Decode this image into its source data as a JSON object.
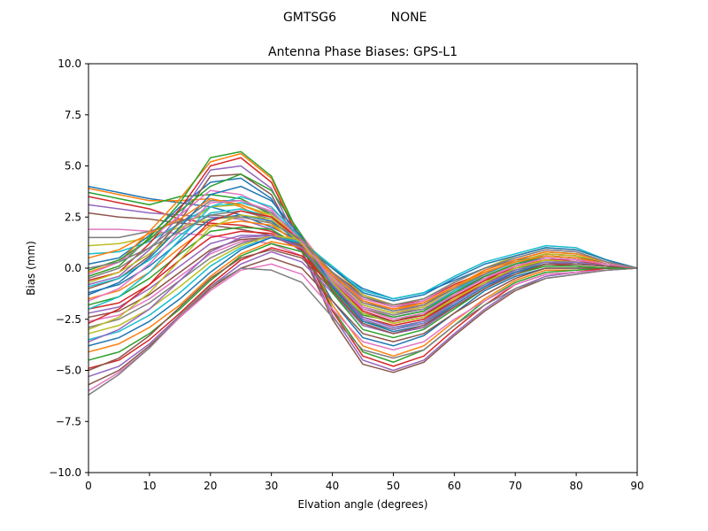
{
  "suptitle_left": "GMTSG6",
  "suptitle_right": "NONE",
  "chart_data": {
    "type": "line",
    "title": "Antenna Phase Biases: GPS-L1",
    "xlabel": "Elvation angle (degrees)",
    "ylabel": "Bias (mm)",
    "xlim": [
      0,
      90
    ],
    "ylim": [
      -10,
      10
    ],
    "xticks": [
      0,
      10,
      20,
      30,
      40,
      50,
      60,
      70,
      80,
      90
    ],
    "yticks": [
      -10.0,
      -7.5,
      -5.0,
      -2.5,
      0.0,
      2.5,
      5.0,
      7.5,
      10.0
    ],
    "ytick_labels": [
      "−10.0",
      "−7.5",
      "−5.0",
      "−2.5",
      "0.0",
      "2.5",
      "5.0",
      "7.5",
      "10.0"
    ],
    "x": [
      0,
      5,
      10,
      15,
      20,
      25,
      30,
      35,
      40,
      45,
      50,
      55,
      60,
      65,
      70,
      75,
      80,
      85,
      90
    ],
    "grid": false,
    "legend": "none",
    "palette": [
      "#1f77b4",
      "#ff7f0e",
      "#2ca02c",
      "#d62728",
      "#9467bd",
      "#8c564b",
      "#e377c2",
      "#7f7f7f",
      "#bcbd22",
      "#17becf"
    ],
    "series": [
      {
        "values": [
          4.0,
          3.7,
          3.4,
          3.2,
          3.0,
          2.6,
          2.0,
          1.3,
          0.0,
          -1.0,
          -1.5,
          -1.2,
          -0.6,
          0.0,
          0.4,
          0.6,
          0.5,
          0.2,
          0.0
        ]
      },
      {
        "values": [
          3.9,
          3.6,
          3.3,
          3.3,
          3.4,
          3.0,
          2.2,
          1.0,
          -0.5,
          -1.6,
          -2.0,
          -1.8,
          -1.0,
          -0.4,
          0.1,
          0.4,
          0.3,
          0.1,
          0.0
        ]
      },
      {
        "values": [
          3.7,
          3.4,
          3.1,
          3.5,
          3.6,
          3.4,
          2.6,
          1.2,
          -0.9,
          -2.3,
          -2.6,
          -2.2,
          -1.4,
          -0.6,
          -0.1,
          0.2,
          0.2,
          0.1,
          0.0
        ]
      },
      {
        "values": [
          3.5,
          3.2,
          2.9,
          2.4,
          2.2,
          2.1,
          1.8,
          1.0,
          -0.2,
          -1.3,
          -1.8,
          -1.6,
          -0.8,
          -0.2,
          0.3,
          0.7,
          0.6,
          0.2,
          0.0
        ]
      },
      {
        "values": [
          3.1,
          2.9,
          2.7,
          2.6,
          2.5,
          2.4,
          1.9,
          0.8,
          -0.6,
          -1.8,
          -2.2,
          -2.0,
          -1.1,
          -0.4,
          0.2,
          0.5,
          0.4,
          0.1,
          0.0
        ]
      },
      {
        "values": [
          2.7,
          2.5,
          2.4,
          2.2,
          2.1,
          1.9,
          1.6,
          0.9,
          -0.4,
          -1.4,
          -1.9,
          -1.7,
          -0.9,
          -0.3,
          0.3,
          0.7,
          0.6,
          0.2,
          0.0
        ]
      },
      {
        "values": [
          1.9,
          1.9,
          1.8,
          1.7,
          1.6,
          1.4,
          1.2,
          0.6,
          -0.5,
          -1.6,
          -2.1,
          -1.9,
          -1.0,
          -0.4,
          0.1,
          0.5,
          0.4,
          0.1,
          0.0
        ]
      },
      {
        "values": [
          1.5,
          1.5,
          1.8,
          2.3,
          2.6,
          2.8,
          2.4,
          1.3,
          -0.6,
          -1.9,
          -2.3,
          -2.0,
          -1.2,
          -0.5,
          0.0,
          0.3,
          0.2,
          0.1,
          0.0
        ]
      },
      {
        "values": [
          1.1,
          1.2,
          1.5,
          2.0,
          2.4,
          2.5,
          2.2,
          1.0,
          -0.8,
          -2.2,
          -2.6,
          -2.3,
          -1.5,
          -0.7,
          -0.2,
          0.1,
          0.1,
          0.0,
          0.0
        ]
      },
      {
        "values": [
          0.7,
          0.8,
          1.3,
          2.2,
          3.0,
          3.2,
          2.8,
          1.4,
          -0.9,
          -2.6,
          -3.0,
          -2.6,
          -1.6,
          -0.8,
          -0.2,
          0.2,
          0.2,
          0.1,
          0.0
        ]
      },
      {
        "values": [
          0.2,
          0.5,
          1.6,
          3.0,
          4.2,
          4.4,
          3.4,
          1.0,
          -1.6,
          -3.4,
          -3.8,
          -3.3,
          -2.2,
          -1.1,
          -0.4,
          0.0,
          0.0,
          0.0,
          0.0
        ]
      },
      {
        "values": [
          -0.2,
          0.3,
          1.8,
          3.4,
          5.2,
          5.6,
          4.4,
          1.2,
          -1.8,
          -3.8,
          -4.3,
          -3.8,
          -2.6,
          -1.5,
          -0.6,
          -0.1,
          -0.1,
          0.0,
          0.0
        ]
      },
      {
        "values": [
          -0.4,
          0.1,
          1.5,
          3.2,
          5.4,
          5.7,
          4.5,
          1.3,
          -2.0,
          -4.1,
          -4.6,
          -4.0,
          -2.8,
          -1.6,
          -0.7,
          -0.2,
          -0.1,
          0.0,
          0.0
        ]
      },
      {
        "values": [
          -0.6,
          -0.2,
          1.2,
          2.9,
          5.0,
          5.4,
          4.2,
          1.1,
          -2.1,
          -4.3,
          -4.8,
          -4.3,
          -3.0,
          -1.8,
          -0.8,
          -0.3,
          -0.2,
          0.0,
          0.0
        ]
      },
      {
        "values": [
          -0.8,
          -0.4,
          0.9,
          2.6,
          4.8,
          5.0,
          3.9,
          0.9,
          -2.3,
          -4.5,
          -5.0,
          -4.5,
          -3.2,
          -2.0,
          -1.0,
          -0.4,
          -0.2,
          -0.1,
          0.0
        ]
      },
      {
        "values": [
          -1.0,
          -0.5,
          0.6,
          2.3,
          4.5,
          4.6,
          3.6,
          0.8,
          -2.5,
          -4.7,
          -5.1,
          -4.6,
          -3.3,
          -2.1,
          -1.1,
          -0.5,
          -0.3,
          -0.1,
          0.0
        ]
      },
      {
        "values": [
          -0.3,
          0.3,
          1.4,
          2.6,
          3.8,
          3.6,
          2.9,
          1.6,
          -0.3,
          -1.5,
          -1.9,
          -1.6,
          -0.7,
          0.0,
          0.5,
          0.9,
          0.8,
          0.3,
          0.0
        ]
      },
      {
        "values": [
          -0.5,
          0.0,
          1.0,
          2.2,
          3.3,
          3.3,
          2.7,
          1.5,
          -0.4,
          -1.7,
          -2.1,
          -1.8,
          -0.9,
          -0.1,
          0.4,
          0.8,
          0.7,
          0.3,
          0.0
        ]
      },
      {
        "values": [
          -0.7,
          -0.2,
          0.7,
          1.9,
          3.0,
          3.1,
          2.6,
          1.4,
          -0.5,
          -1.8,
          -2.2,
          -1.9,
          -1.0,
          -0.2,
          0.3,
          0.7,
          0.6,
          0.3,
          0.0
        ]
      },
      {
        "values": [
          -0.9,
          -0.5,
          0.4,
          1.6,
          2.7,
          2.9,
          2.5,
          1.3,
          -0.6,
          -2.0,
          -2.4,
          -2.1,
          -1.1,
          -0.3,
          0.3,
          0.6,
          0.5,
          0.2,
          0.0
        ]
      },
      {
        "values": [
          -1.2,
          -0.8,
          0.1,
          1.3,
          2.4,
          2.6,
          2.3,
          1.2,
          -0.7,
          -2.2,
          -2.6,
          -2.3,
          -1.3,
          -0.4,
          0.2,
          0.5,
          0.4,
          0.2,
          0.0
        ]
      },
      {
        "values": [
          -1.5,
          -1.1,
          -0.2,
          1.0,
          2.1,
          2.3,
          2.1,
          1.1,
          -0.9,
          -2.4,
          -2.8,
          -2.5,
          -1.5,
          -0.6,
          0.1,
          0.4,
          0.3,
          0.1,
          0.0
        ]
      },
      {
        "values": [
          -1.8,
          -1.4,
          -0.5,
          0.7,
          1.8,
          2.0,
          1.9,
          1.0,
          -1.0,
          -2.6,
          -3.0,
          -2.7,
          -1.7,
          -0.8,
          0.0,
          0.3,
          0.2,
          0.1,
          0.0
        ]
      },
      {
        "values": [
          -2.0,
          -1.7,
          -0.8,
          0.4,
          1.5,
          1.8,
          1.7,
          0.9,
          -1.1,
          -2.8,
          -3.2,
          -2.9,
          -1.9,
          -1.0,
          -0.2,
          0.2,
          0.1,
          0.0,
          0.0
        ]
      },
      {
        "values": [
          -2.2,
          -1.9,
          -1.0,
          0.1,
          1.2,
          1.6,
          1.6,
          1.0,
          -0.8,
          -2.5,
          -3.0,
          -2.7,
          -1.8,
          -0.9,
          -0.1,
          0.3,
          0.2,
          0.1,
          0.0
        ]
      },
      {
        "values": [
          -2.4,
          -2.1,
          -1.3,
          -0.2,
          0.9,
          1.4,
          1.5,
          1.1,
          -0.6,
          -2.2,
          -2.7,
          -2.4,
          -1.6,
          -0.8,
          0.0,
          0.4,
          0.3,
          0.1,
          0.0
        ]
      },
      {
        "values": [
          -2.6,
          -2.3,
          -1.5,
          -0.4,
          0.7,
          1.3,
          1.5,
          1.2,
          -0.4,
          -1.9,
          -2.4,
          -2.1,
          -1.3,
          -0.5,
          0.2,
          0.6,
          0.5,
          0.2,
          0.0
        ]
      },
      {
        "values": [
          -2.9,
          -2.5,
          -1.7,
          -0.6,
          0.5,
          1.2,
          1.6,
          1.3,
          -0.2,
          -1.6,
          -2.1,
          -1.8,
          -1.0,
          -0.3,
          0.4,
          0.8,
          0.7,
          0.3,
          0.0
        ]
      },
      {
        "values": [
          -3.2,
          -2.8,
          -2.0,
          -0.9,
          0.3,
          1.1,
          1.6,
          1.4,
          0.0,
          -1.3,
          -1.8,
          -1.5,
          -0.7,
          0.0,
          0.6,
          1.0,
          0.9,
          0.4,
          0.0
        ]
      },
      {
        "values": [
          -3.5,
          -3.1,
          -2.3,
          -1.2,
          0.1,
          1.0,
          1.5,
          1.3,
          0.1,
          -1.1,
          -1.5,
          -1.2,
          -0.4,
          0.3,
          0.7,
          1.1,
          1.0,
          0.4,
          0.0
        ]
      },
      {
        "values": [
          -3.8,
          -3.4,
          -2.6,
          -1.5,
          -0.2,
          0.9,
          1.5,
          1.2,
          0.0,
          -1.2,
          -1.6,
          -1.3,
          -0.5,
          0.2,
          0.6,
          1.0,
          0.9,
          0.4,
          0.0
        ]
      },
      {
        "values": [
          -4.1,
          -3.7,
          -2.9,
          -1.8,
          -0.4,
          0.7,
          1.3,
          1.0,
          -0.3,
          -1.6,
          -2.0,
          -1.7,
          -0.9,
          -0.1,
          0.4,
          0.8,
          0.7,
          0.3,
          0.0
        ]
      },
      {
        "values": [
          -4.5,
          -4.1,
          -3.2,
          -2.0,
          -0.6,
          0.6,
          1.2,
          0.8,
          -0.6,
          -2.0,
          -2.4,
          -2.1,
          -1.2,
          -0.4,
          0.2,
          0.6,
          0.5,
          0.2,
          0.0
        ]
      },
      {
        "values": [
          -4.9,
          -4.5,
          -3.5,
          -2.2,
          -0.8,
          0.4,
          1.0,
          0.6,
          -0.9,
          -2.4,
          -2.8,
          -2.5,
          -1.6,
          -0.7,
          0.0,
          0.4,
          0.4,
          0.1,
          0.0
        ]
      },
      {
        "values": [
          -5.3,
          -4.8,
          -3.7,
          -2.3,
          -0.9,
          0.2,
          0.8,
          0.3,
          -1.2,
          -2.8,
          -3.2,
          -2.9,
          -1.9,
          -1.0,
          -0.2,
          0.2,
          0.2,
          0.1,
          0.0
        ]
      },
      {
        "values": [
          -5.7,
          -5.0,
          -3.8,
          -2.4,
          -1.0,
          0.0,
          0.5,
          0.0,
          -1.6,
          -3.2,
          -3.6,
          -3.2,
          -2.2,
          -1.3,
          -0.5,
          0.0,
          0.0,
          0.0,
          0.0
        ]
      },
      {
        "values": [
          -6.0,
          -5.1,
          -3.9,
          -2.4,
          -1.1,
          -0.1,
          0.2,
          -0.3,
          -2.0,
          -3.6,
          -4.0,
          -3.6,
          -2.5,
          -1.6,
          -0.8,
          -0.3,
          -0.2,
          -0.1,
          0.0
        ]
      },
      {
        "values": [
          -6.2,
          -5.2,
          -3.9,
          -2.3,
          -0.9,
          0.0,
          -0.1,
          -0.7,
          -2.4,
          -4.0,
          -4.4,
          -4.0,
          -2.8,
          -1.8,
          -1.0,
          -0.5,
          -0.3,
          -0.1,
          0.0
        ]
      },
      {
        "values": [
          -3.0,
          -2.4,
          -1.2,
          0.4,
          2.0,
          2.6,
          2.4,
          1.2,
          -0.7,
          -2.2,
          -2.7,
          -2.4,
          -1.5,
          -0.7,
          0.0,
          0.4,
          0.3,
          0.1,
          0.0
        ]
      },
      {
        "values": [
          -2.0,
          -1.4,
          -0.2,
          1.4,
          3.0,
          3.5,
          3.0,
          1.4,
          -0.8,
          -2.4,
          -2.9,
          -2.6,
          -1.7,
          -0.8,
          -0.1,
          0.3,
          0.3,
          0.1,
          0.0
        ]
      },
      {
        "values": [
          -1.3,
          -0.7,
          0.5,
          2.0,
          3.6,
          4.0,
          3.3,
          1.5,
          -0.9,
          -2.6,
          -3.1,
          -2.8,
          -1.8,
          -0.9,
          -0.2,
          0.2,
          0.2,
          0.1,
          0.0
        ]
      },
      {
        "values": [
          0.5,
          0.9,
          1.7,
          2.4,
          3.4,
          3.1,
          2.5,
          1.4,
          -0.3,
          -1.6,
          -2.0,
          -1.7,
          -0.9,
          -0.2,
          0.3,
          0.6,
          0.5,
          0.2,
          0.0
        ]
      },
      {
        "values": [
          -0.1,
          0.4,
          1.4,
          2.8,
          4.0,
          4.6,
          3.8,
          1.6,
          -1.2,
          -3.0,
          -3.4,
          -3.0,
          -2.0,
          -1.0,
          -0.3,
          0.1,
          0.1,
          0.0,
          0.0
        ]
      },
      {
        "values": [
          -2.7,
          -2.0,
          -0.8,
          0.8,
          2.3,
          2.8,
          2.5,
          1.3,
          -0.6,
          -2.1,
          -2.6,
          -2.3,
          -1.4,
          -0.6,
          0.1,
          0.5,
          0.4,
          0.2,
          0.0
        ]
      },
      {
        "values": [
          -3.6,
          -3.0,
          -2.0,
          -0.6,
          0.8,
          1.5,
          1.6,
          1.0,
          -0.8,
          -2.4,
          -2.9,
          -2.6,
          -1.7,
          -0.8,
          -0.1,
          0.3,
          0.3,
          0.1,
          0.0
        ]
      },
      {
        "values": [
          -5.0,
          -4.4,
          -3.3,
          -1.9,
          -0.5,
          0.5,
          0.9,
          0.5,
          -1.1,
          -2.7,
          -3.2,
          -2.8,
          -1.9,
          -1.0,
          -0.3,
          0.2,
          0.2,
          0.1,
          0.0
        ]
      },
      {
        "values": [
          -1.6,
          -1.0,
          0.2,
          1.8,
          3.2,
          3.3,
          2.8,
          1.3,
          -0.6,
          -2.0,
          -2.5,
          -2.2,
          -1.3,
          -0.5,
          0.1,
          0.5,
          0.4,
          0.2,
          0.0
        ]
      },
      {
        "values": [
          0.0,
          0.3,
          1.0,
          1.8,
          2.6,
          2.5,
          2.2,
          1.4,
          -0.2,
          -1.4,
          -1.8,
          -1.5,
          -0.7,
          0.0,
          0.5,
          0.9,
          0.8,
          0.3,
          0.0
        ]
      }
    ]
  }
}
